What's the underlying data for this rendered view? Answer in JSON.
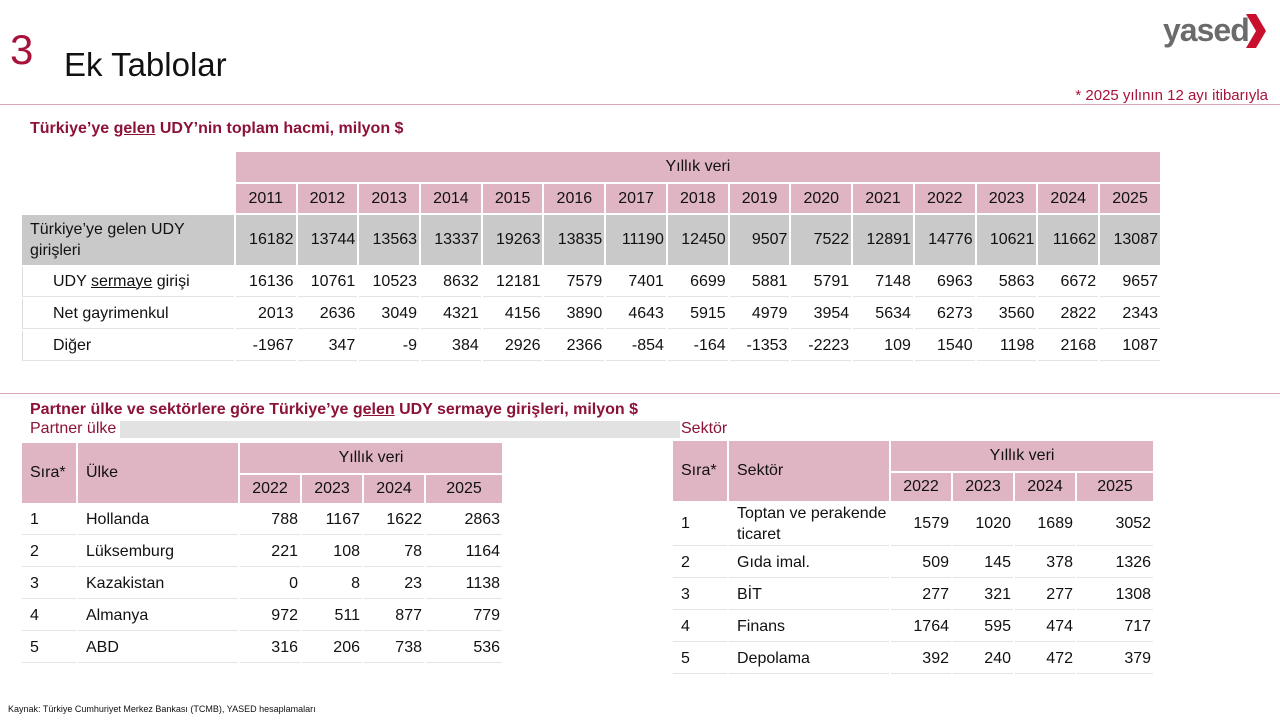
{
  "header": {
    "number": "3",
    "title": "Ek Tablolar",
    "logo": "yased",
    "note": "* 2025 yılının 12 ayı itibarıyla"
  },
  "table1": {
    "title_parts": [
      "Türkiye’ye ",
      "gelen",
      " UDY’nin toplam hacmi, milyon $"
    ],
    "group_header": "Yıllık veri",
    "years": [
      2011,
      2012,
      2013,
      2014,
      2015,
      2016,
      2017,
      2018,
      2019,
      2020,
      2021,
      2022,
      2023,
      2024,
      2025
    ],
    "rows": [
      {
        "label_parts": [
          "Türkiye’ye gelen UDY girişleri"
        ],
        "values": [
          16182,
          13744,
          13563,
          13337,
          19263,
          13835,
          11190,
          12450,
          9507,
          7522,
          12891,
          14776,
          10621,
          11662,
          13087
        ]
      },
      {
        "label_parts": [
          "UDY ",
          "sermaye",
          " girişi"
        ],
        "values": [
          16136,
          10761,
          10523,
          8632,
          12181,
          7579,
          7401,
          6699,
          5881,
          5791,
          7148,
          6963,
          5863,
          6672,
          9657
        ]
      },
      {
        "label_parts": [
          "Net gayrimenkul"
        ],
        "values": [
          2013,
          2636,
          3049,
          4321,
          4156,
          3890,
          4643,
          5915,
          4979,
          3954,
          5634,
          6273,
          3560,
          2822,
          2343
        ]
      },
      {
        "label_parts": [
          "Diğer"
        ],
        "values": [
          -1967,
          347,
          -9,
          384,
          2926,
          2366,
          -854,
          -164,
          -1353,
          -2223,
          109,
          1540,
          1198,
          2168,
          1087
        ]
      }
    ]
  },
  "section2": {
    "title_parts": [
      "Partner ülke ve sektörlere göre Türkiye’ye ",
      "gelen",
      " UDY sermaye girişleri, milyon $"
    ]
  },
  "table2": {
    "subtitle": "Partner ülke",
    "rank_header": "Sıra*",
    "name_header": "Ülke",
    "group_header": "Yıllık veri",
    "years": [
      2022,
      2023,
      2024,
      2025
    ],
    "rows": [
      [
        1,
        "Hollanda",
        788,
        1167,
        1622,
        2863
      ],
      [
        2,
        "Lüksemburg",
        221,
        108,
        78,
        1164
      ],
      [
        3,
        "Kazakistan",
        0,
        8,
        23,
        1138
      ],
      [
        4,
        "Almanya",
        972,
        511,
        877,
        779
      ],
      [
        5,
        "ABD",
        316,
        206,
        738,
        536
      ]
    ]
  },
  "table3": {
    "subtitle": "Sektör",
    "rank_header": "Sıra*",
    "name_header": "Sektör",
    "group_header": "Yıllık veri",
    "years": [
      2022,
      2023,
      2024,
      2025
    ],
    "rows": [
      [
        1,
        "Toptan ve perakende ticaret",
        1579,
        1020,
        1689,
        3052
      ],
      [
        2,
        "Gıda imal.",
        509,
        145,
        378,
        1326
      ],
      [
        3,
        "BİT",
        277,
        321,
        277,
        1308
      ],
      [
        4,
        "Finans",
        1764,
        595,
        474,
        717
      ],
      [
        5,
        "Depolama",
        392,
        240,
        472,
        379
      ]
    ]
  },
  "footer": {
    "source": "Kaynak: Türkiye Cumhuriyet Merkez Bankası (TCMB), YASED hesaplamaları"
  }
}
